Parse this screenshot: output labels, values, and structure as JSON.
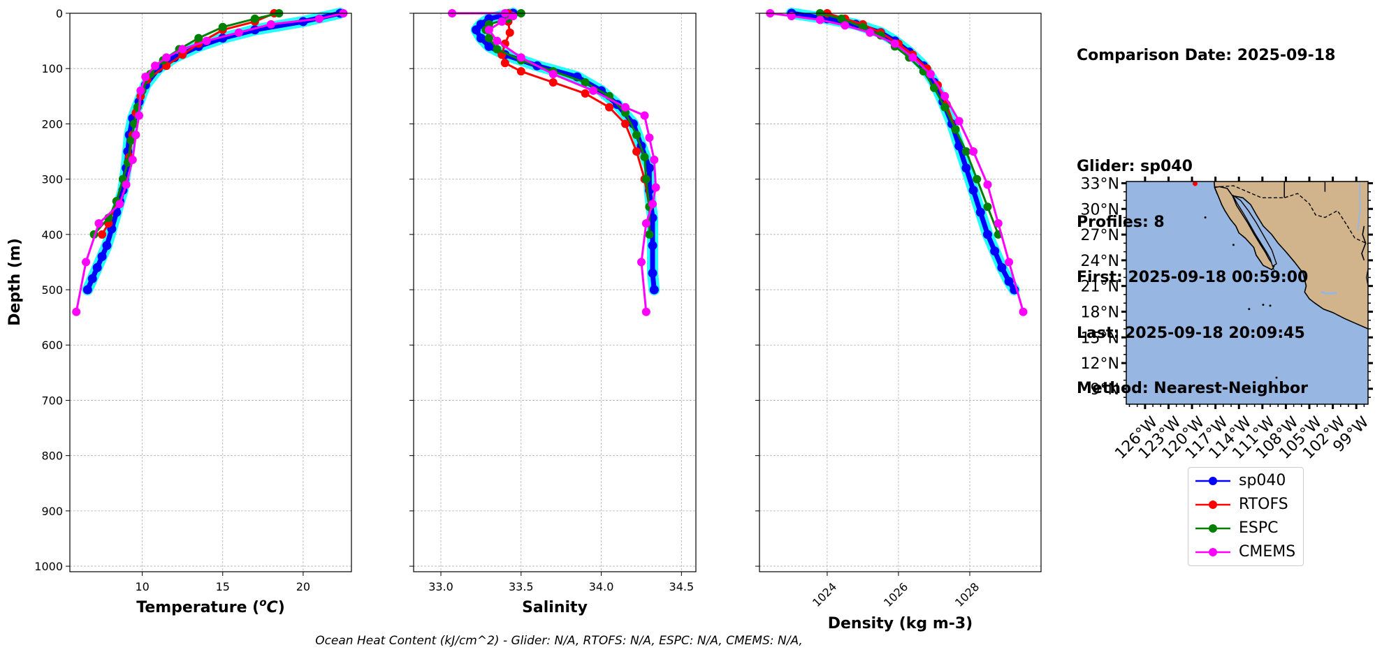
{
  "chart_data": [
    {
      "type": "line",
      "panel": "temperature",
      "xlabel": "Temperature ($^oC$)",
      "xlabel_parts": {
        "pre": "Temperature (",
        "sup": "o",
        "base": "C",
        "post": ")"
      },
      "ylabel": "Depth (m)",
      "xlim": [
        5.5,
        23
      ],
      "ylim": [
        1010,
        0
      ],
      "xticks": [
        10,
        15,
        20
      ],
      "yticks": [
        0,
        100,
        200,
        300,
        400,
        500,
        600,
        700,
        800,
        900,
        1000
      ],
      "grid": true,
      "series": [
        {
          "name": "sp040",
          "color": "#0000ff",
          "x": [
            22.3,
            20.0,
            17.0,
            15.0,
            13.5,
            12.0,
            11.0,
            10.2,
            9.8,
            9.4,
            9.2,
            9.1,
            9.0,
            8.9,
            8.8,
            8.6,
            8.4,
            8.1,
            7.8,
            7.5,
            7.2,
            6.9,
            6.6
          ],
          "y": [
            0,
            15,
            30,
            45,
            60,
            80,
            100,
            130,
            160,
            190,
            220,
            250,
            280,
            300,
            320,
            340,
            360,
            390,
            420,
            440,
            460,
            480,
            500
          ]
        },
        {
          "name": "RTOFS",
          "color": "#ff0000",
          "x": [
            18.2,
            17.0,
            15.0,
            13.5,
            12.5,
            11.5,
            10.3,
            9.9,
            9.6,
            9.4,
            9.2,
            8.8,
            8.4,
            7.9,
            7.5
          ],
          "y": [
            0,
            15,
            30,
            55,
            75,
            95,
            120,
            150,
            180,
            220,
            260,
            300,
            340,
            380,
            400
          ]
        },
        {
          "name": "ESPC",
          "color": "#008000",
          "x": [
            18.5,
            17.0,
            15.0,
            13.5,
            12.3,
            11.3,
            10.5,
            10.0,
            9.7,
            9.5,
            9.3,
            9.1,
            8.8,
            8.4,
            7.9,
            7.0
          ],
          "y": [
            0,
            10,
            25,
            45,
            65,
            85,
            110,
            140,
            170,
            200,
            230,
            270,
            300,
            340,
            370,
            400
          ]
        },
        {
          "name": "CMEMS",
          "color": "#ff00ff",
          "x": [
            22.5,
            21.0,
            18.0,
            16.0,
            14.0,
            12.5,
            11.5,
            10.8,
            10.2,
            9.9,
            9.8,
            9.6,
            9.4,
            9.0,
            8.6,
            7.3,
            6.5,
            5.9
          ],
          "y": [
            0,
            10,
            20,
            35,
            50,
            65,
            80,
            95,
            115,
            140,
            185,
            220,
            265,
            310,
            345,
            380,
            450,
            540
          ]
        }
      ]
    },
    {
      "type": "line",
      "panel": "salinity",
      "xlabel": "Salinity",
      "xlim": [
        32.83,
        34.59
      ],
      "ylim": [
        1010,
        0
      ],
      "xticks": [
        33.0,
        33.5,
        34.0,
        34.5
      ],
      "yticks": [
        0,
        100,
        200,
        300,
        400,
        500,
        600,
        700,
        800,
        900,
        1000
      ],
      "grid": true,
      "series": [
        {
          "name": "sp040",
          "color": "#0000ff",
          "x": [
            33.45,
            33.3,
            33.25,
            33.22,
            33.25,
            33.3,
            33.4,
            33.6,
            33.85,
            34.0,
            34.1,
            34.2,
            34.25,
            34.3,
            34.3,
            34.32,
            34.32,
            34.32,
            34.33
          ],
          "y": [
            0,
            10,
            20,
            30,
            45,
            60,
            75,
            95,
            115,
            140,
            165,
            200,
            240,
            280,
            320,
            370,
            420,
            470,
            500
          ]
        },
        {
          "name": "RTOFS",
          "color": "#ff0000",
          "x": [
            33.42,
            33.42,
            33.43,
            33.4,
            33.38,
            33.4,
            33.5,
            33.7,
            33.9,
            34.05,
            34.15,
            34.22,
            34.27,
            34.3
          ],
          "y": [
            0,
            15,
            35,
            55,
            75,
            90,
            105,
            125,
            145,
            170,
            200,
            250,
            300,
            350
          ]
        },
        {
          "name": "ESPC",
          "color": "#008000",
          "x": [
            33.5,
            33.42,
            33.3,
            33.28,
            33.3,
            33.35,
            33.5,
            33.7,
            33.9,
            34.05,
            34.15,
            34.22,
            34.27,
            34.28,
            34.3,
            34.3
          ],
          "y": [
            0,
            10,
            20,
            30,
            45,
            65,
            85,
            105,
            125,
            150,
            180,
            220,
            260,
            300,
            350,
            400
          ]
        },
        {
          "name": "CMEMS",
          "color": "#ff00ff",
          "x": [
            33.07,
            33.4,
            33.45,
            33.38,
            33.3,
            33.35,
            33.5,
            33.7,
            33.95,
            34.15,
            34.27,
            34.3,
            34.33,
            34.34,
            34.32,
            34.28,
            34.25,
            34.28
          ],
          "y": [
            0,
            0,
            5,
            15,
            30,
            50,
            80,
            110,
            140,
            170,
            185,
            225,
            265,
            315,
            345,
            380,
            450,
            540
          ]
        }
      ]
    },
    {
      "type": "line",
      "panel": "density",
      "xlabel": "Density (kg m-3)",
      "xlim": [
        1022.1,
        1030.0
      ],
      "ylim": [
        1010,
        0
      ],
      "xticks": [
        1024,
        1026,
        1028
      ],
      "yticks": [
        0,
        100,
        200,
        300,
        400,
        500,
        600,
        700,
        800,
        900,
        1000
      ],
      "grid": true,
      "series": [
        {
          "name": "sp040",
          "color": "#0000ff",
          "x": [
            1023.0,
            1024.0,
            1024.8,
            1025.5,
            1025.9,
            1026.3,
            1026.7,
            1027.0,
            1027.25,
            1027.5,
            1027.7,
            1027.9,
            1028.1,
            1028.3,
            1028.5,
            1028.7,
            1028.9,
            1029.1,
            1029.25
          ],
          "y": [
            0,
            10,
            20,
            35,
            50,
            70,
            95,
            125,
            160,
            200,
            240,
            280,
            320,
            360,
            400,
            430,
            460,
            485,
            500
          ]
        },
        {
          "name": "RTOFS",
          "color": "#ff0000",
          "x": [
            1024.0,
            1024.5,
            1025.0,
            1025.5,
            1026.0,
            1026.4,
            1026.8,
            1027.1,
            1027.35,
            1027.6
          ],
          "y": [
            0,
            10,
            20,
            35,
            55,
            75,
            100,
            130,
            165,
            210
          ]
        },
        {
          "name": "ESPC",
          "color": "#008000",
          "x": [
            1023.8,
            1024.4,
            1025.0,
            1025.5,
            1025.9,
            1026.3,
            1026.7,
            1027.0,
            1027.3,
            1027.6,
            1027.9,
            1028.2,
            1028.5,
            1028.8
          ],
          "y": [
            0,
            10,
            25,
            40,
            60,
            80,
            105,
            135,
            170,
            210,
            250,
            300,
            350,
            400
          ]
        },
        {
          "name": "CMEMS",
          "color": "#ff00ff",
          "x": [
            1022.4,
            1023.0,
            1023.8,
            1024.5,
            1025.2,
            1025.9,
            1026.4,
            1026.9,
            1027.3,
            1027.7,
            1028.1,
            1028.5,
            1028.8,
            1029.1,
            1029.5
          ],
          "y": [
            0,
            5,
            12,
            22,
            35,
            55,
            80,
            110,
            150,
            195,
            250,
            310,
            380,
            450,
            540
          ]
        }
      ]
    }
  ],
  "info": {
    "comparison_date": "Comparison Date: 2025-09-18",
    "glider": "Glider: sp040",
    "profiles": "Profiles: 8",
    "first": "First: 2025-09-18 00:59:00",
    "last": "Last: 2025-09-18 20:09:45",
    "method": "Method: Nearest-Neighbor"
  },
  "map": {
    "ocean_color": "#97b6e1",
    "land_color": "#d2b48c",
    "lat_labels": [
      "33°N",
      "30°N",
      "27°N",
      "24°N",
      "21°N",
      "18°N",
      "15°N",
      "12°N",
      "9°N"
    ],
    "lon_labels": [
      "126°W",
      "123°W",
      "120°W",
      "117°W",
      "114°W",
      "111°W",
      "108°W",
      "105°W",
      "102°W",
      "99°W"
    ]
  },
  "legend": [
    {
      "label": "sp040",
      "color": "#0000ff"
    },
    {
      "label": "RTOFS",
      "color": "#ff0000"
    },
    {
      "label": "ESPC",
      "color": "#008000"
    },
    {
      "label": "CMEMS",
      "color": "#ff00ff"
    }
  ],
  "footer": "Ocean Heat Content (kJ/cm^2) - Glider: N/A,  RTOFS: N/A,  ESPC: N/A,  CMEMS: N/A,"
}
